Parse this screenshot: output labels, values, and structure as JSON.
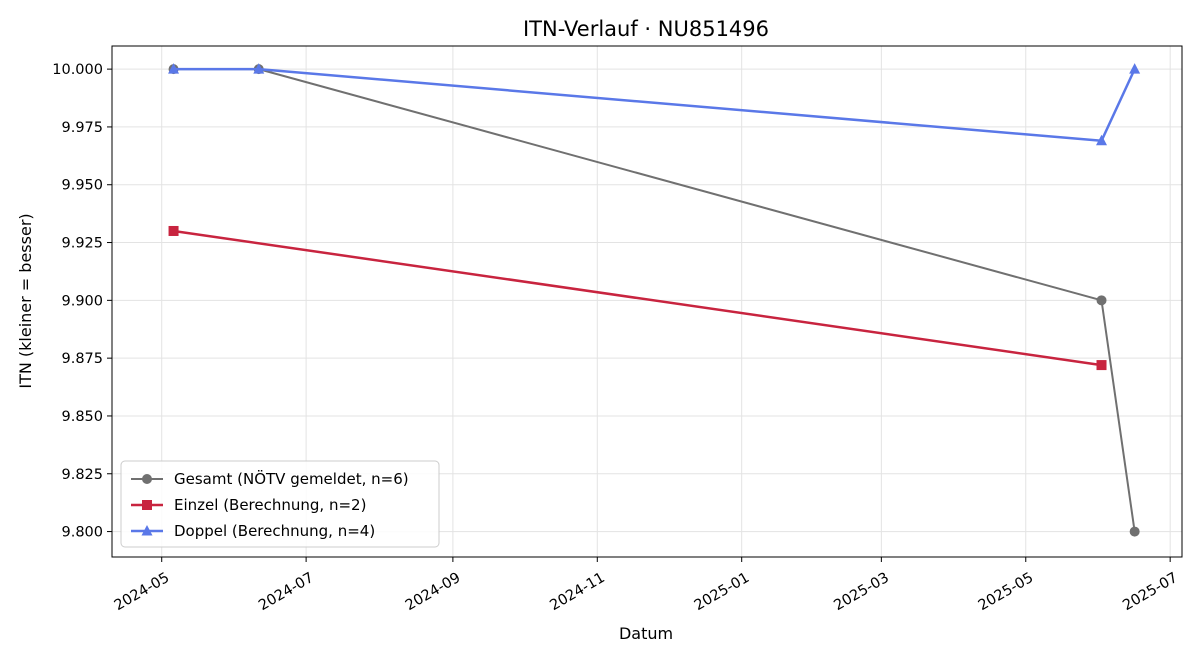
{
  "chart_data": {
    "type": "line",
    "title": "ITN-Verlauf · NU851496",
    "xlabel": "Datum",
    "ylabel": "ITN  (kleiner = besser)",
    "x_ticks": [
      "2024-05",
      "2024-07",
      "2024-09",
      "2024-11",
      "2025-01",
      "2025-03",
      "2025-05",
      "2025-07"
    ],
    "y_ticks": [
      "9.800",
      "9.825",
      "9.850",
      "9.875",
      "9.900",
      "9.925",
      "9.950",
      "9.975",
      "10.000"
    ],
    "ylim": [
      9.789,
      10.01
    ],
    "xlim": [
      "2024-04-10",
      "2025-07-06"
    ],
    "grid": true,
    "legend_position": "lower-left",
    "series": [
      {
        "name": "Gesamt (NÖTV gemeldet, n=6)",
        "color": "#707070",
        "marker": "circle",
        "points": [
          {
            "x": "2024-05-06",
            "y": 10.0
          },
          {
            "x": "2024-06-11",
            "y": 10.0
          },
          {
            "x": "2025-06-02",
            "y": 9.9
          },
          {
            "x": "2025-06-16",
            "y": 9.8
          }
        ]
      },
      {
        "name": "Einzel (Berechnung, n=2)",
        "color": "#c8243f",
        "marker": "square",
        "points": [
          {
            "x": "2024-05-06",
            "y": 9.93
          },
          {
            "x": "2025-06-02",
            "y": 9.872
          }
        ]
      },
      {
        "name": "Doppel (Berechnung, n=4)",
        "color": "#5a78e8",
        "marker": "triangle",
        "points": [
          {
            "x": "2024-05-06",
            "y": 10.0
          },
          {
            "x": "2024-06-11",
            "y": 10.0
          },
          {
            "x": "2025-06-02",
            "y": 9.969
          },
          {
            "x": "2025-06-16",
            "y": 10.0
          }
        ]
      }
    ]
  }
}
